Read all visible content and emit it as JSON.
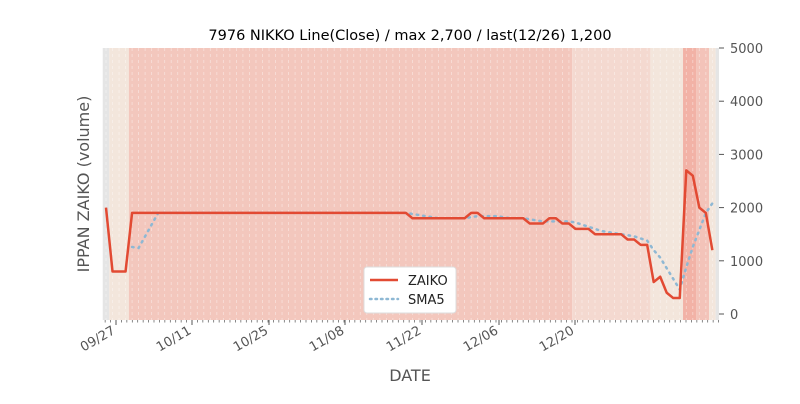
{
  "chart_data": {
    "type": "line",
    "title": "7976 NIKKO Line(Close) / max 2,700 / last(12/26) 1,200",
    "xlabel": "DATE",
    "ylabel": "IPPAN ZAIKO (volume)",
    "ylim": [
      0,
      5000
    ],
    "yticks": [
      0,
      1000,
      2000,
      3000,
      4000,
      5000
    ],
    "xtick_labels": [
      "09/27",
      "10/11",
      "10/25",
      "11/08",
      "11/22",
      "12/06",
      "12/20"
    ],
    "legend": {
      "placement": "bottom-center",
      "entries": [
        "ZAIKO",
        "SMA5"
      ]
    },
    "series": [
      {
        "name": "ZAIKO",
        "color": "#e24a33",
        "style": "solid",
        "runs": [
          [
            2000,
            1
          ],
          [
            800,
            3
          ],
          [
            1900,
            43
          ],
          [
            1800,
            9
          ],
          [
            1900,
            2
          ],
          [
            1800,
            7
          ],
          [
            1700,
            3
          ],
          [
            1800,
            2
          ],
          [
            1700,
            2
          ],
          [
            1600,
            3
          ],
          [
            1500,
            5
          ],
          [
            1400,
            2
          ],
          [
            1300,
            2
          ],
          [
            600,
            1
          ],
          [
            700,
            1
          ],
          [
            400,
            1
          ],
          [
            300,
            2
          ],
          [
            2700,
            1
          ],
          [
            2600,
            1
          ],
          [
            2000,
            1
          ],
          [
            1900,
            1
          ],
          [
            1200,
            1
          ]
        ]
      },
      {
        "name": "SMA5",
        "color": "#8eb8d4",
        "style": "dotted",
        "window": 5
      }
    ],
    "bands": [
      {
        "from": -1,
        "to": 0,
        "color": "#e5e5e5"
      },
      {
        "from": 0,
        "to": 3,
        "color": "#f3e6dc"
      },
      {
        "from": 3,
        "to": 71,
        "color": "#f3c7bd"
      },
      {
        "from": 71,
        "to": 83,
        "color": "#f4d9d0"
      },
      {
        "from": 83,
        "to": 88,
        "color": "#f3e6dc"
      },
      {
        "from": 88,
        "to": 90,
        "color": "#f2b2a6"
      },
      {
        "from": 90,
        "to": 92,
        "color": "#f3c3b9"
      },
      {
        "from": 92,
        "to": 93,
        "color": "#f3e6dc"
      },
      {
        "from": 93,
        "to": 94,
        "color": "#e5e5e5"
      }
    ]
  }
}
